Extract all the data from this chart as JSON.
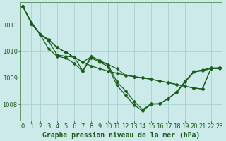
{
  "background_color": "#cceaea",
  "grid_color": "#aad0d0",
  "line_color": "#1a5c1a",
  "marker_color": "#1a5c1a",
  "xlabel": "Graphe pression niveau de la mer (hPa)",
  "xlabel_fontsize": 7,
  "yticks": [
    1008,
    1009,
    1010,
    1011
  ],
  "xticks": [
    0,
    1,
    2,
    3,
    4,
    5,
    6,
    7,
    8,
    9,
    10,
    11,
    12,
    13,
    14,
    15,
    16,
    17,
    18,
    19,
    20,
    21,
    22,
    23
  ],
  "xlim": [
    -0.3,
    23.3
  ],
  "ylim": [
    1007.4,
    1011.85
  ],
  "series": [
    [
      1011.7,
      1011.1,
      1010.65,
      1010.45,
      1010.15,
      1009.97,
      1009.78,
      1009.6,
      1009.45,
      1009.35,
      1009.25,
      1009.18,
      1009.1,
      1009.05,
      1009.0,
      1008.95,
      1008.88,
      1008.82,
      1008.75,
      1008.68,
      1008.62,
      1008.58,
      1009.35,
      1009.38
    ],
    [
      1011.7,
      1011.1,
      1010.65,
      1010.45,
      1010.15,
      1009.97,
      1009.78,
      1009.6,
      1009.8,
      1009.65,
      1009.5,
      1009.35,
      1009.1,
      1009.05,
      1009.0,
      1008.95,
      1008.88,
      1008.82,
      1008.75,
      1008.68,
      1008.62,
      1008.58,
      1009.35,
      1009.38
    ],
    [
      1011.7,
      1011.05,
      1010.65,
      1010.4,
      1009.87,
      1009.82,
      1009.78,
      1009.27,
      1009.82,
      1009.65,
      1009.48,
      1008.85,
      1008.52,
      1008.12,
      1007.8,
      1008.02,
      1008.02,
      1008.22,
      1008.48,
      1008.88,
      1009.25,
      1009.3,
      1009.38,
      1009.38
    ],
    [
      1011.7,
      1011.05,
      1010.65,
      1010.1,
      1009.82,
      1009.75,
      1009.55,
      1009.25,
      1009.75,
      1009.6,
      1009.42,
      1008.72,
      1008.35,
      1007.98,
      1007.75,
      1008.0,
      1008.02,
      1008.22,
      1008.45,
      1008.85,
      1009.22,
      1009.27,
      1009.35,
      1009.35
    ]
  ],
  "marker_size": 2.5,
  "linewidth": 0.9,
  "tick_fontsize": 6,
  "tick_color": "#1a5c1a",
  "spine_color": "#558855"
}
